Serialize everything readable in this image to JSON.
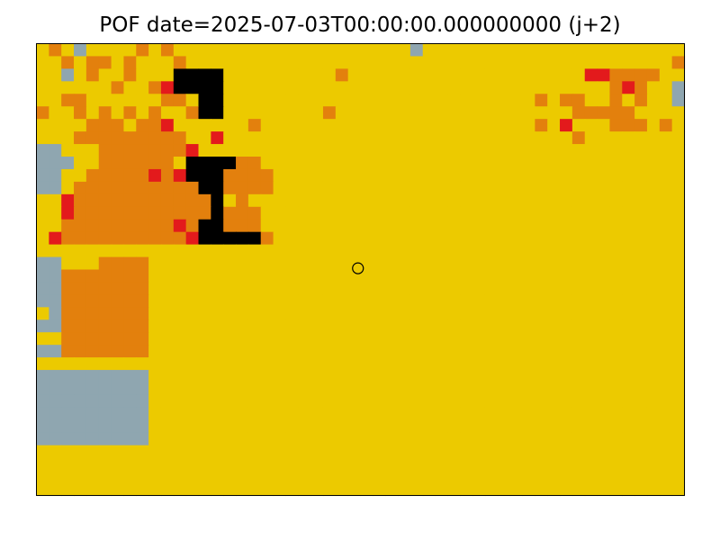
{
  "chart_data": {
    "type": "heatmap",
    "title": "POF date=2025-07-03T00:00:00.000000000 (j+2)",
    "xlabel": "",
    "ylabel": "",
    "grid": false,
    "legend": "none",
    "axes_ticks": "none",
    "grid_size": {
      "cols": 52,
      "rows": 36
    },
    "palette": {
      "0": "#8fa6b0",
      "1": "#ecca00",
      "2": "#e3800d",
      "3": "#e31a1c",
      "4": "#000000"
    },
    "class_order": [
      "grey",
      "yellow",
      "orange",
      "red",
      "black"
    ],
    "cells": [
      "1210111121211111111111111111110111111111111111111111",
      "1121221211121111111111111111111111111111111111111112",
      "1101211211144441111111112111111111111111111133222211",
      "1111112112344441111111111111111111111111111111232110",
      "1122111111221441111111111111111111111111212211212110",
      "2112121212112441111111121111111111111111111222221111",
      "1111222122311111121111111111111111111111213111222121",
      "1112222222221131111111111111111111111111111211111111",
      "0011122222223111111111111111111111111111111111111111",
      "0001122222214444221111111111111111111111111111111111",
      "0011222223234442222111111111111111111111111111111111",
      "0012222222222442222111111111111111111111111111111111",
      "1132222222222241211111111111111111111111111111111111",
      "1132222222222242221111111111111111111111111111111111",
      "1122222222232442221111111111111111111111111111111111",
      "1322222222223444442111111111111111111111111111111111",
      "1111111111111111111111111111111111111111111111111111",
      "0011122221111111111111111111111111111111111111111111",
      "0022222221111111111111111111111111111111111111111111",
      "0022222221111111111111111111111111111111111111111111",
      "0022222221111111111111111111111111111111111111111111",
      "1022222221111111111111111111111111111111111111111111",
      "0022222221111111111111111111111111111111111111111111",
      "1122222221111111111111111111111111111111111111111111",
      "0022222221111111111111111111111111111111111111111111",
      "1111111111111111111111111111111111111111111111111111",
      "0000000001111111111111111111111111111111111111111111",
      "0000000001111111111111111111111111111111111111111111",
      "0000000001111111111111111111111111111111111111111111",
      "0000000001111111111111111111111111111111111111111111",
      "0000000001111111111111111111111111111111111111111111",
      "0000000001111111111111111111111111111111111111111111",
      "1111111111111111111111111111111111111111111111111111",
      "1111111111111111111111111111111111111111111111111111",
      "1111111111111111111111111111111111111111111111111111",
      "1111111111111111111111111111111111111111111111111111"
    ],
    "marker": {
      "type": "circle",
      "col": 25.8,
      "row": 17.9
    }
  }
}
